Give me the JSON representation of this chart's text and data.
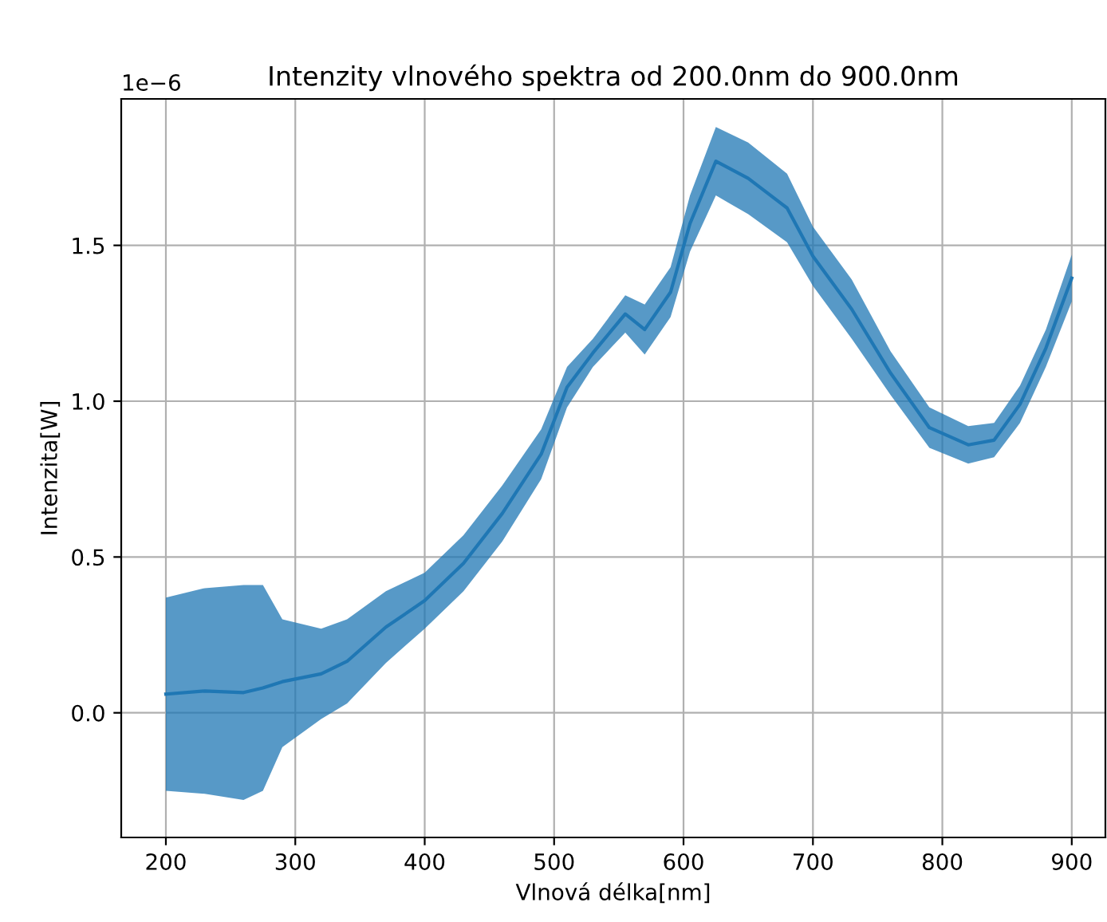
{
  "chart_data": {
    "type": "line",
    "title": "Intenzity vlnového spektra od 200.0nm do 900.0nm",
    "xlabel": "Vlnová délka[nm]",
    "ylabel": "Intenzita[W]",
    "annotations": [
      "1e−6"
    ],
    "x": [
      200,
      230,
      260,
      275,
      290,
      320,
      340,
      370,
      400,
      430,
      460,
      490,
      510,
      530,
      555,
      570,
      590,
      605,
      625,
      650,
      680,
      700,
      730,
      760,
      790,
      820,
      840,
      860,
      880,
      900
    ],
    "series": [
      {
        "color": "#1f77b4",
        "values": [
          0.06,
          0.07,
          0.065,
          0.08,
          0.1,
          0.125,
          0.165,
          0.275,
          0.36,
          0.48,
          0.64,
          0.83,
          1.045,
          1.155,
          1.28,
          1.23,
          1.35,
          1.57,
          1.77,
          1.715,
          1.62,
          1.465,
          1.295,
          1.09,
          0.915,
          0.86,
          0.875,
          0.99,
          1.17,
          1.395
        ],
        "upper": [
          0.37,
          0.4,
          0.41,
          0.41,
          0.3,
          0.27,
          0.3,
          0.39,
          0.45,
          0.57,
          0.73,
          0.91,
          1.11,
          1.2,
          1.34,
          1.31,
          1.43,
          1.66,
          1.88,
          1.83,
          1.73,
          1.56,
          1.39,
          1.16,
          0.98,
          0.92,
          0.93,
          1.05,
          1.23,
          1.47
        ],
        "lower": [
          -0.25,
          -0.26,
          -0.28,
          -0.25,
          -0.11,
          -0.02,
          0.03,
          0.16,
          0.27,
          0.39,
          0.55,
          0.75,
          0.98,
          1.11,
          1.22,
          1.15,
          1.27,
          1.48,
          1.66,
          1.6,
          1.51,
          1.37,
          1.2,
          1.02,
          0.85,
          0.8,
          0.82,
          0.93,
          1.11,
          1.32
        ]
      }
    ],
    "xlim": [
      165.5,
      926
    ],
    "ylim": [
      -0.4,
      1.97
    ],
    "xticks": [
      200,
      300,
      400,
      500,
      600,
      700,
      800,
      900
    ],
    "yticks": [
      {
        "value": 0,
        "label": "0.0"
      },
      {
        "value": 0.5,
        "label": "0.5"
      },
      {
        "value": 1,
        "label": "1.0"
      },
      {
        "value": 1.5,
        "label": "1.5"
      }
    ],
    "grid": true
  }
}
